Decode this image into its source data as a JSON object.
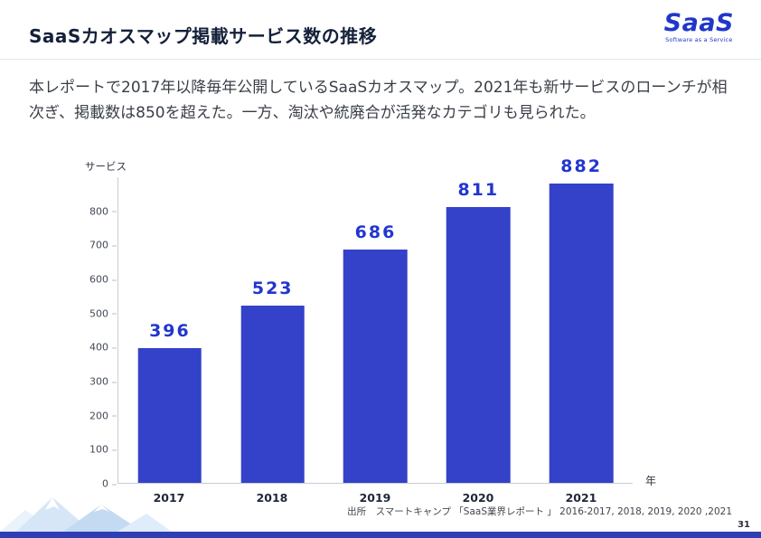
{
  "header": {
    "title": "SaaSカオスマップ掲載サービス数の推移",
    "logo": {
      "text": "SaaS",
      "tagline": "Software as a Service"
    }
  },
  "intro": {
    "text": "本レポートで2017年以降毎年公開しているSaaSカオスマップ。2021年も新サービスのローンチが相次ぎ、掲載数は850を超えた。一方、淘汰や統廃合が活発なカテゴリも見られた。"
  },
  "chart_data": {
    "type": "bar",
    "categories": [
      "2017",
      "2018",
      "2019",
      "2020",
      "2021"
    ],
    "values": [
      396,
      523,
      686,
      811,
      882
    ],
    "title": "",
    "xlabel": "年",
    "ylabel": "サービス",
    "ylim": [
      0,
      900
    ],
    "yticks": [
      0,
      100,
      200,
      300,
      400,
      500,
      600,
      700,
      800
    ],
    "grid": false,
    "legend": "none",
    "bar_color": "#3342c8",
    "value_label_color": "#2236cf"
  },
  "footer": {
    "source": "出所　スマートキャンプ 「SaaS業界レポート 」 2016-2017, 2018, 2019, 2020 ,2021",
    "page_number": "31"
  },
  "colors": {
    "brand_blue": "#2037c8",
    "bar_blue": "#3342c8",
    "bottom_bar_blue": "#2f3eb3"
  }
}
